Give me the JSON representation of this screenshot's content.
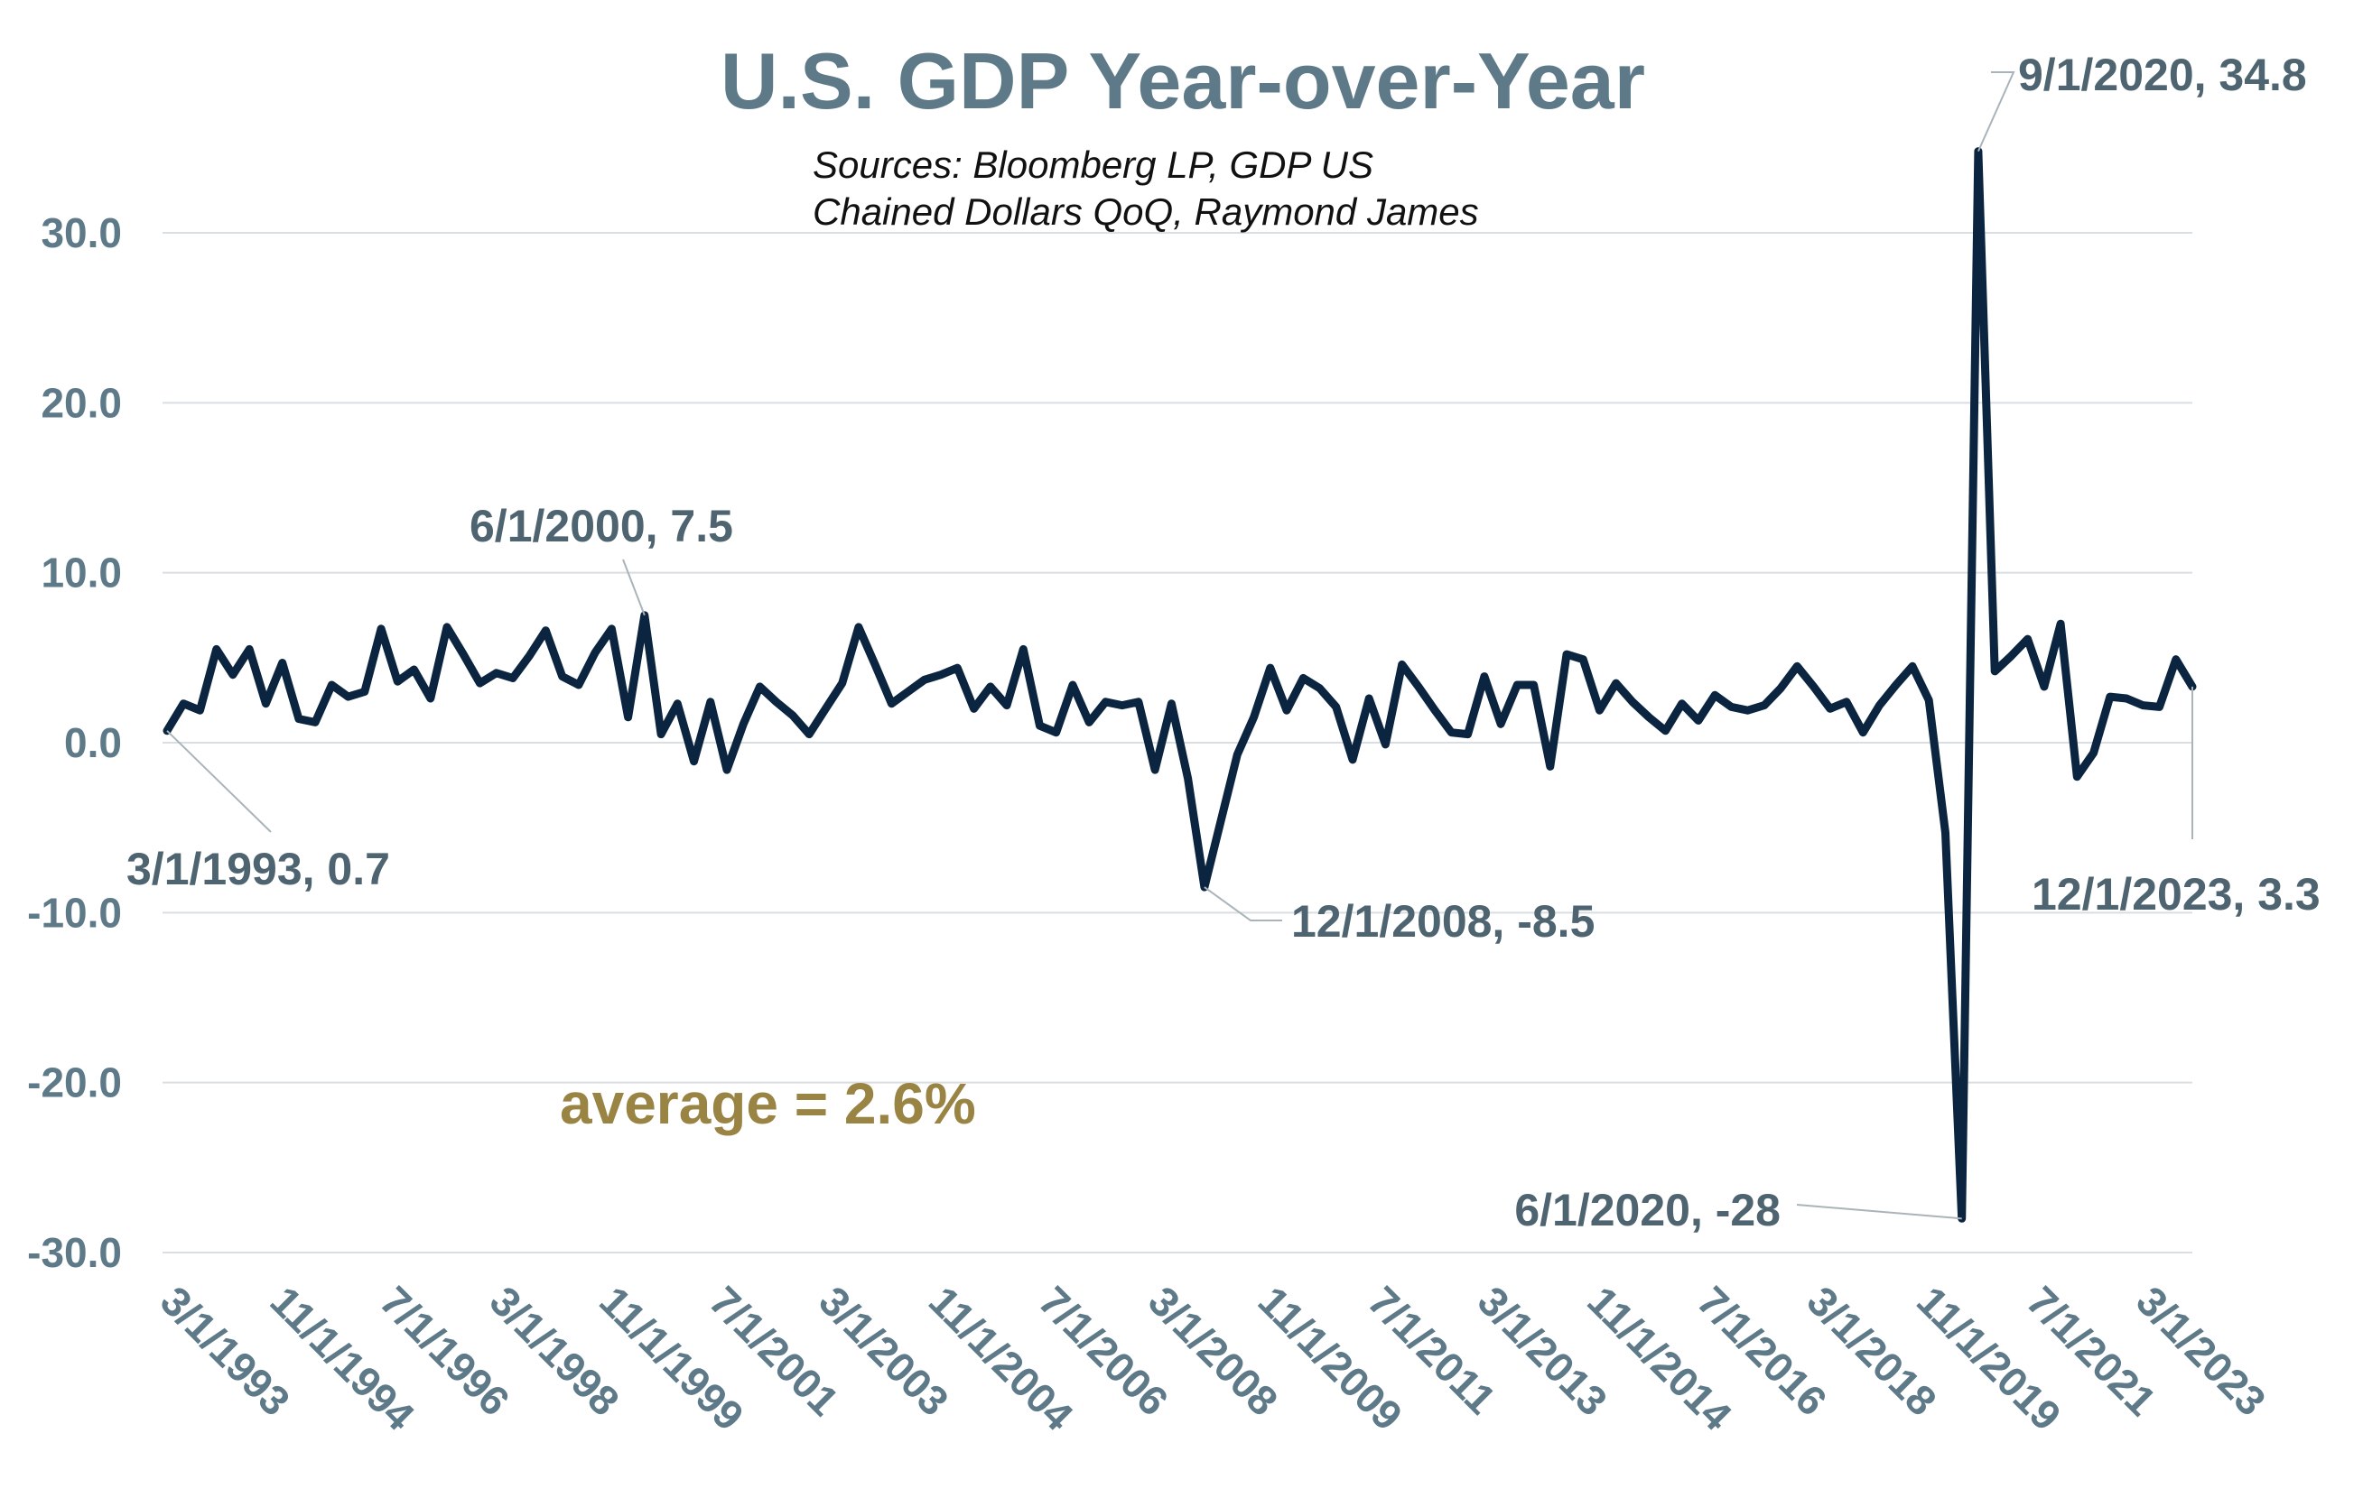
{
  "chart_data": {
    "type": "line",
    "title": "U.S. GDP Year-over-Year",
    "subtitle_lines": [
      "Sources: Bloomberg LP, GDP US",
      "Chained Dollars QoQ, Raymond James"
    ],
    "xlabel": "",
    "ylabel": "",
    "ylim": [
      -30,
      30
    ],
    "yticks": [
      "-30.0",
      "-20.0",
      "-10.0",
      "0.0",
      "10.0",
      "20.0",
      "30.0"
    ],
    "ytick_values": [
      -30,
      -20,
      -10,
      0,
      10,
      20,
      30
    ],
    "xtick_labels": [
      "3/1/1993",
      "11/1/1994",
      "7/1/1996",
      "3/1/1998",
      "11/1/1999",
      "7/1/2001",
      "3/1/2003",
      "11/1/2004",
      "7/1/2006",
      "3/1/2008",
      "11/1/2009",
      "7/1/2011",
      "3/1/2013",
      "11/1/2014",
      "7/1/2016",
      "3/1/2018",
      "11/1/2019",
      "7/1/2021",
      "3/1/2023"
    ],
    "x_start": "3/1/1993",
    "x_end": "12/1/2023",
    "x_frequency": "quarterly",
    "grid": true,
    "legend": "none",
    "line_color": "#0b2540",
    "series": [
      {
        "values": [
          0.7,
          2.3,
          1.9,
          5.5,
          4.0,
          5.5,
          2.3,
          4.7,
          1.4,
          1.2,
          3.4,
          2.7,
          3.0,
          6.7,
          3.6,
          4.3,
          2.6,
          6.8,
          5.2,
          3.5,
          4.1,
          3.8,
          5.1,
          6.6,
          3.9,
          3.4,
          5.3,
          6.7,
          1.5,
          7.5,
          0.5,
          2.3,
          -1.1,
          2.4,
          -1.6,
          1.1,
          3.3,
          2.4,
          1.6,
          0.5,
          2.0,
          3.5,
          6.8,
          4.6,
          2.3,
          3.0,
          3.7,
          4.0,
          4.4,
          2.0,
          3.3,
          2.2,
          5.5,
          1.0,
          0.6,
          3.4,
          1.2,
          2.4,
          2.2,
          2.4,
          -1.6,
          2.3,
          -2.1,
          -8.5,
          -4.6,
          -0.7,
          1.5,
          4.4,
          1.9,
          3.8,
          3.2,
          2.1,
          -1.0,
          2.6,
          -0.1,
          4.6,
          3.3,
          1.9,
          0.6,
          0.5,
          3.9,
          1.1,
          3.4,
          3.4,
          -1.4,
          5.2,
          4.9,
          1.9,
          3.5,
          2.4,
          1.5,
          0.7,
          2.3,
          1.3,
          2.8,
          2.1,
          1.9,
          2.2,
          3.2,
          4.5,
          3.3,
          2.0,
          2.4,
          0.6,
          2.2,
          3.4,
          4.5,
          2.5,
          -5.3,
          -28.0,
          34.8,
          4.2,
          5.1,
          6.1,
          3.3,
          7.0,
          -2.0,
          -0.6,
          2.7,
          2.6,
          2.2,
          2.1,
          4.9,
          3.3
        ]
      }
    ],
    "annotations": [
      {
        "label": "9/1/2020, 34.8",
        "x": "9/1/2020",
        "y": 34.8
      },
      {
        "label": "6/1/2000, 7.5",
        "x": "6/1/2000",
        "y": 7.5
      },
      {
        "label": "3/1/1993, 0.7",
        "x": "3/1/1993",
        "y": 0.7
      },
      {
        "label": "12/1/2008, -8.5",
        "x": "12/1/2008",
        "y": -8.5
      },
      {
        "label": "12/1/2023, 3.3",
        "x": "12/1/2023",
        "y": 3.3
      },
      {
        "label": "6/1/2020, -28",
        "x": "6/1/2020",
        "y": -28
      }
    ],
    "average_label": "average = 2.6%"
  }
}
